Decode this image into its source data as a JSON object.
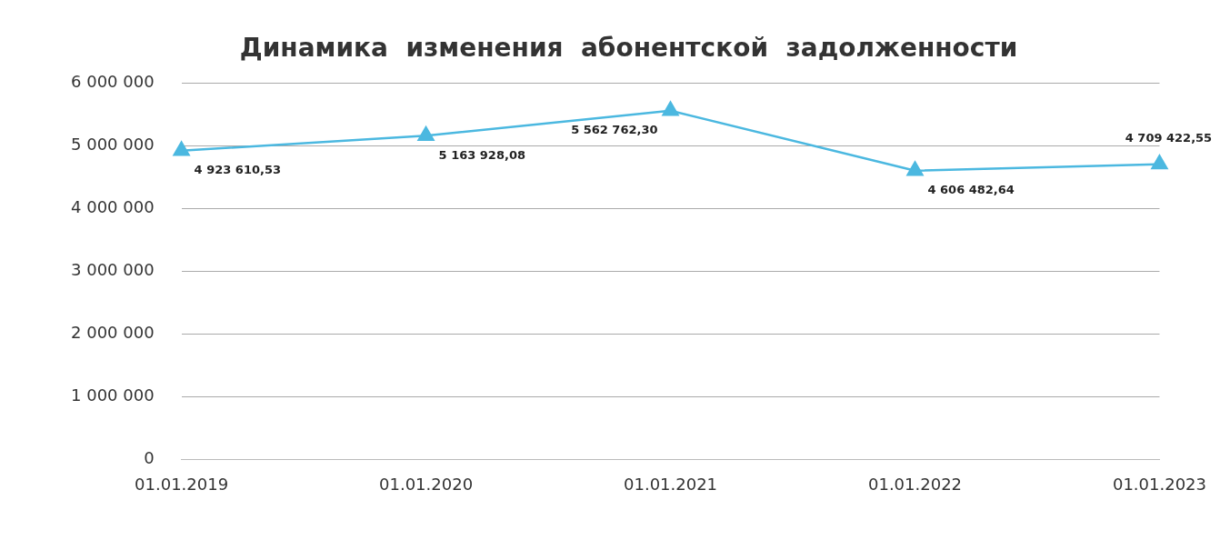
{
  "chart_data": {
    "type": "line",
    "title": "Динамика  изменения  абонентской  задолженности",
    "categories": [
      "01.01.2019",
      "01.01.2020",
      "01.01.2021",
      "01.01.2022",
      "01.01.2023"
    ],
    "series": [
      {
        "color": "#4bb8e0",
        "values": [
          4923610.53,
          5163928.08,
          5562762.3,
          4606482.64,
          4709422.55
        ],
        "value_labels": [
          "4 923 610,53",
          "5 163 928,08",
          "5 562 762,30",
          "4 606 482,64",
          "4 709 422,55"
        ]
      }
    ],
    "ylim": [
      0,
      6000000
    ],
    "yticks": [
      {
        "value": 0,
        "label": "0"
      },
      {
        "value": 1000000,
        "label": "1 000 000"
      },
      {
        "value": 2000000,
        "label": "2 000 000"
      },
      {
        "value": 3000000,
        "label": "3 000 000"
      },
      {
        "value": 4000000,
        "label": "4 000 000"
      },
      {
        "value": 5000000,
        "label": "5 000 000"
      },
      {
        "value": 6000000,
        "label": "6 000 000"
      }
    ],
    "grid": "y",
    "legend": false,
    "marker": "triangle",
    "line_style": "solid"
  }
}
